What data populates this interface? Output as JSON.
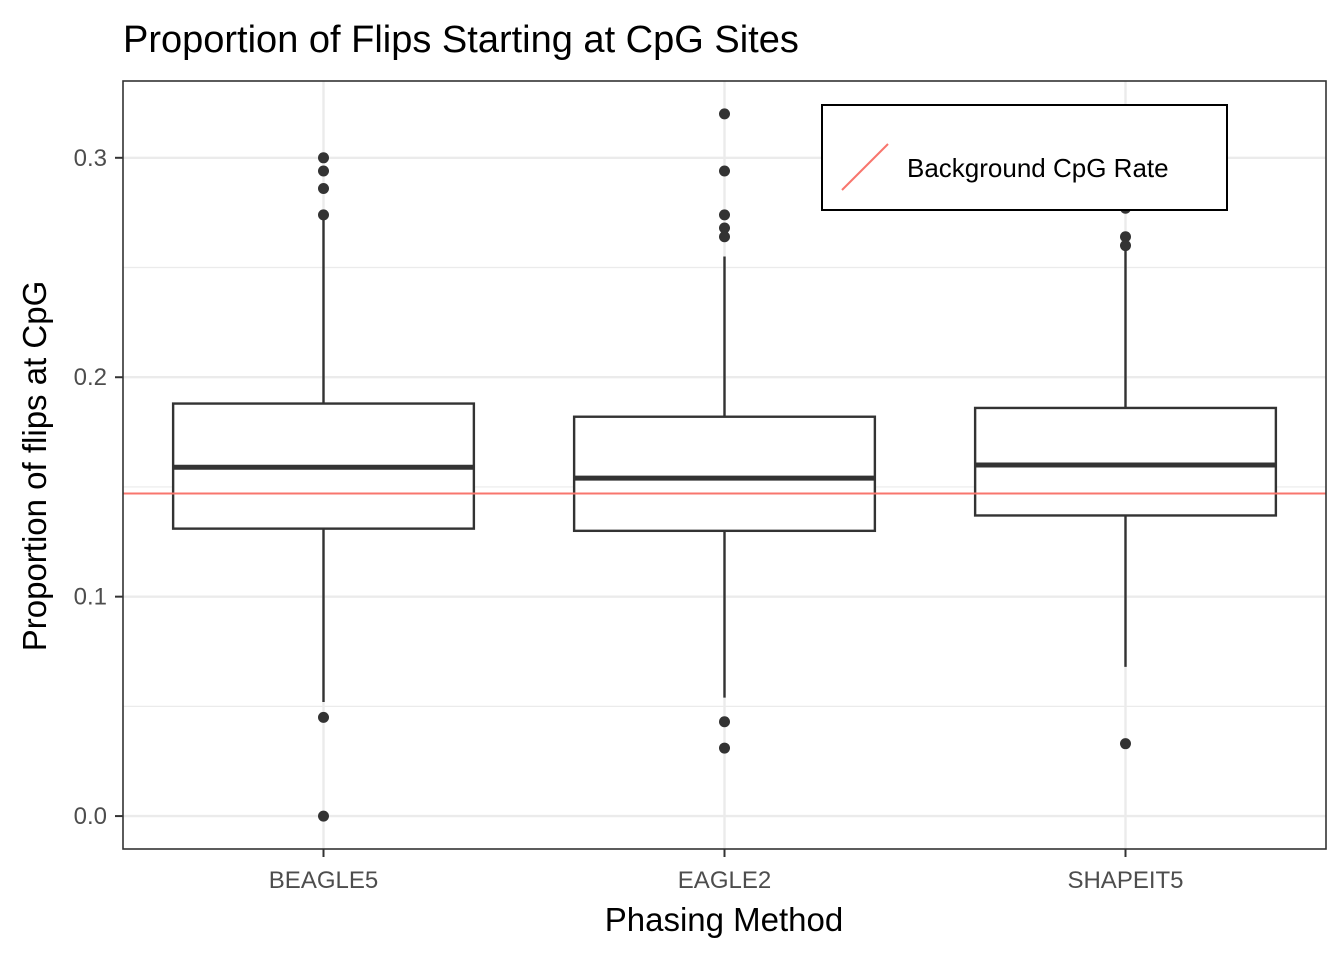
{
  "chart_data": {
    "type": "boxplot",
    "title": "Proportion of Flips Starting at CpG Sites",
    "xlabel": "Phasing Method",
    "ylabel": "Proportion of flips at CpG",
    "ylim": [
      -0.015,
      0.335
    ],
    "yticks": [
      0.0,
      0.1,
      0.2,
      0.3
    ],
    "ytick_labels": [
      "0.0",
      "0.1",
      "0.2",
      "0.3"
    ],
    "categories": [
      "BEAGLE5",
      "EAGLE2",
      "SHAPEIT5"
    ],
    "boxes": [
      {
        "name": "BEAGLE5",
        "whisker_low": 0.052,
        "q1": 0.131,
        "median": 0.159,
        "q3": 0.188,
        "whisker_high": 0.272,
        "outliers": [
          0.3,
          0.294,
          0.286,
          0.274,
          0.045,
          0.0
        ]
      },
      {
        "name": "EAGLE2",
        "whisker_low": 0.054,
        "q1": 0.13,
        "median": 0.154,
        "q3": 0.182,
        "whisker_high": 0.255,
        "outliers": [
          0.32,
          0.294,
          0.274,
          0.268,
          0.264,
          0.043,
          0.031
        ]
      },
      {
        "name": "SHAPEIT5",
        "whisker_low": 0.068,
        "q1": 0.137,
        "median": 0.16,
        "q3": 0.186,
        "whisker_high": 0.258,
        "outliers": [
          0.277,
          0.264,
          0.26,
          0.033
        ]
      }
    ],
    "reference_line": {
      "label": "Background CpG Rate",
      "y": 0.147,
      "color": "#F8766D"
    },
    "grid": true,
    "legend_position": "top-right",
    "colors": {
      "box": "#333333",
      "grid": "#ebebeb",
      "panel_border": "#333333"
    }
  }
}
